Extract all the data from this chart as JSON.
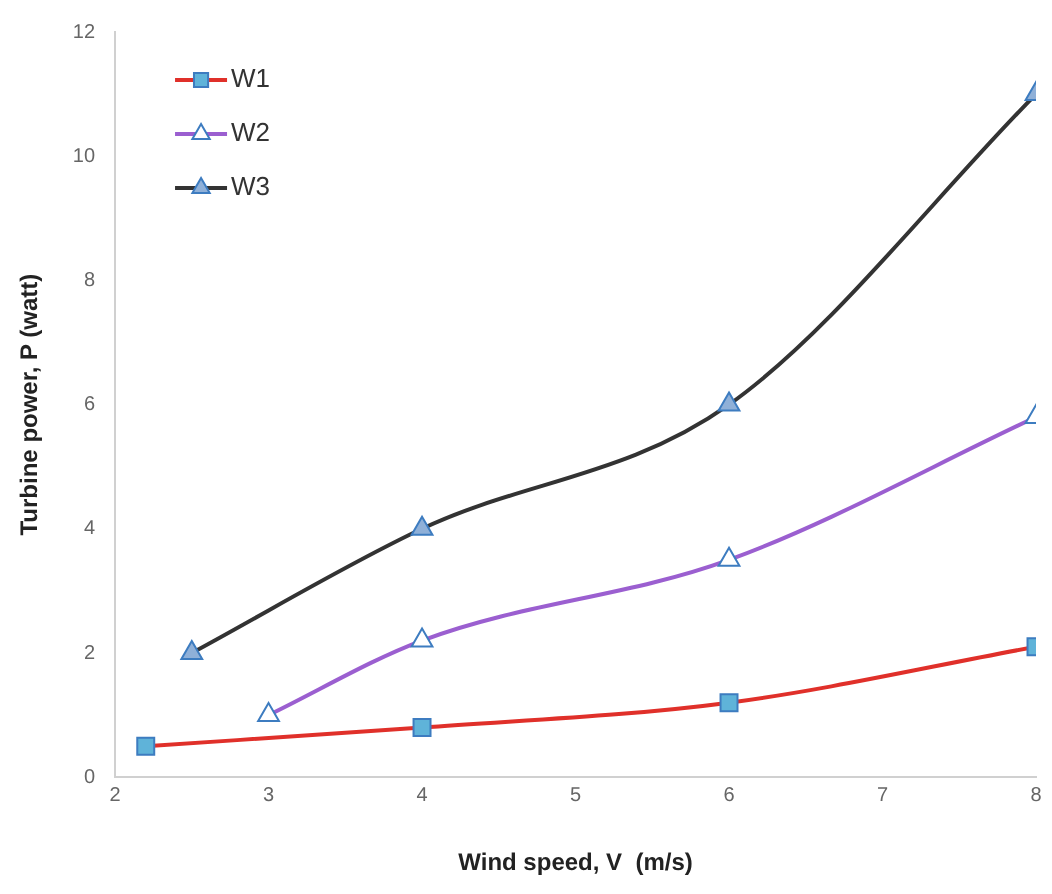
{
  "chart_data": {
    "type": "line",
    "xlabel": "Wind speed, V  (m/s)",
    "ylabel": "Turbine power, P (watt)",
    "xlim": [
      2,
      8
    ],
    "xticks": [
      2,
      3,
      4,
      5,
      6,
      7,
      8
    ],
    "ylim": [
      0,
      12
    ],
    "yticks": [
      0,
      2,
      4,
      6,
      8,
      10,
      12
    ],
    "grid": false,
    "legend": "top left",
    "series": [
      {
        "name": "W1",
        "color": "#e0302a",
        "marker": "square",
        "x": [
          2.2,
          4,
          6,
          8
        ],
        "values": [
          0.5,
          0.8,
          1.2,
          2.1
        ]
      },
      {
        "name": "W2",
        "color": "#9b5fd0",
        "marker": "triangle",
        "x": [
          3,
          4,
          6,
          8
        ],
        "values": [
          1.0,
          2.2,
          3.5,
          5.8
        ]
      },
      {
        "name": "W3",
        "color": "#333333",
        "marker": "triangle",
        "x": [
          2.5,
          4,
          6,
          8
        ],
        "values": [
          2.0,
          4.0,
          6.0,
          11.0
        ]
      }
    ]
  }
}
